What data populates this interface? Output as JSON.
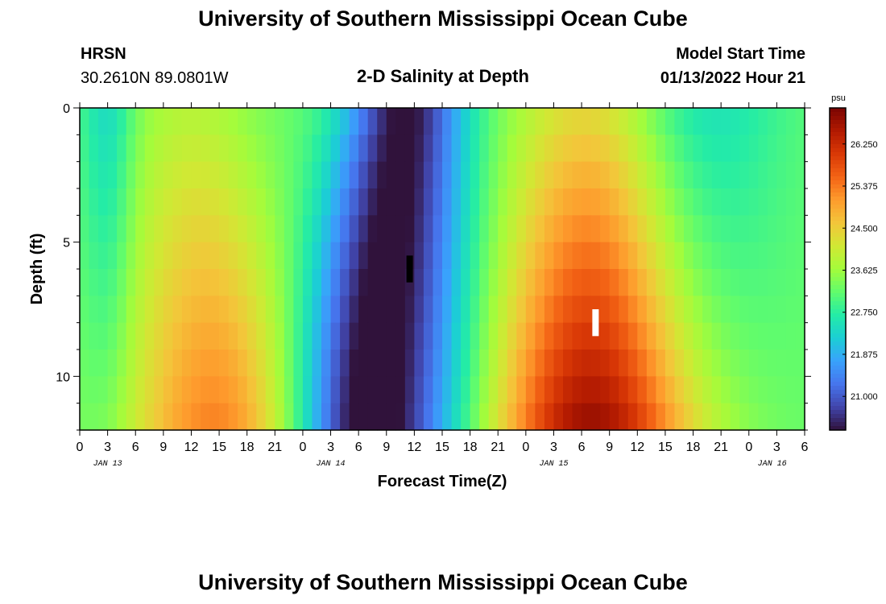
{
  "header": {
    "title": "University of Southern Mississippi Ocean Cube",
    "station": "HRSN",
    "coords": "30.2610N  89.0801W",
    "chart_title": "2-D Salinity at Depth",
    "model_label": "Model Start Time",
    "model_time": "01/13/2022 Hour 21"
  },
  "footer": {
    "title": "University of Southern Mississippi Ocean Cube"
  },
  "colors": {
    "scale": [
      "#30123b",
      "#4145ab",
      "#4675ed",
      "#39a2fc",
      "#1bcfd4",
      "#24eca6",
      "#61fc6c",
      "#a4fc3b",
      "#d1e834",
      "#f3c63a",
      "#fe9b2d",
      "#f36315",
      "#d93806",
      "#b11901",
      "#7a0402"
    ]
  },
  "chart_data": {
    "type": "heatmap",
    "title": "2-D Salinity at Depth",
    "xlabel": "Forecast Time(Z)",
    "ylabel": "Depth (ft)",
    "x_hours_range": [
      0,
      78
    ],
    "y_range": [
      0,
      12
    ],
    "y_ticks": [
      "0",
      "5",
      "10"
    ],
    "x_tick_labels": [
      "0",
      "3",
      "6",
      "9",
      "12",
      "15",
      "18",
      "21",
      "0",
      "3",
      "6",
      "9",
      "12",
      "15",
      "18",
      "21",
      "0",
      "3",
      "6",
      "9",
      "12",
      "15",
      "18",
      "21",
      "0",
      "3",
      "6"
    ],
    "date_labels": [
      "JAN 13",
      "JAN 14",
      "JAN 15",
      "JAN 16"
    ],
    "colorbar": {
      "unit": "psu",
      "min": 20.3,
      "max": 27.0,
      "ticks": [
        "21.000",
        "21.875",
        "22.750",
        "23.625",
        "24.500",
        "25.375",
        "26.250"
      ]
    },
    "markers": [
      {
        "name": "black-marker",
        "hour": 35.5,
        "depth_from": 5.5,
        "depth_to": 6.5,
        "color": "#000000"
      },
      {
        "name": "white-marker",
        "hour": 55.5,
        "depth_from": 7.5,
        "depth_to": 8.5,
        "color": "#ffffff"
      }
    ],
    "grid": false,
    "legend": "colorbar-right"
  }
}
